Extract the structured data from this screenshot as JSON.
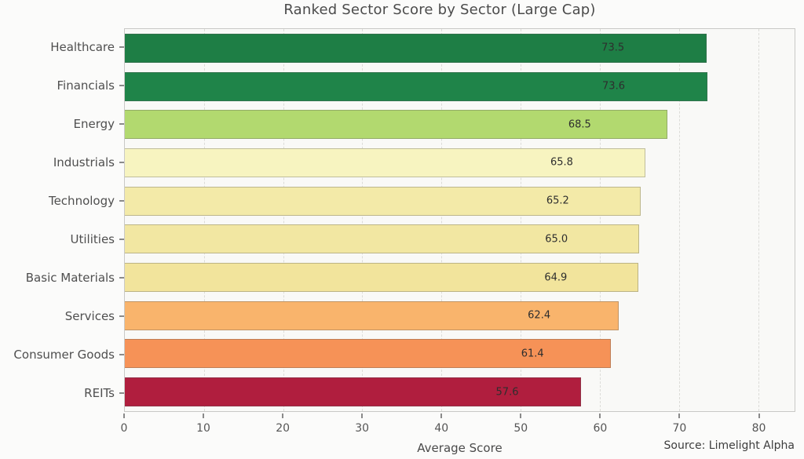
{
  "chart_data": {
    "type": "bar",
    "orientation": "horizontal",
    "title": "Ranked Sector Score by Sector (Large Cap)",
    "xlabel": "Average Score",
    "source": "Source: Limelight Alpha",
    "xlim": [
      0,
      84.6
    ],
    "xticks": [
      0,
      10,
      20,
      30,
      40,
      50,
      60,
      70,
      80
    ],
    "grid": "vertical-dashed",
    "legend": "none",
    "categories": [
      "Healthcare",
      "Financials",
      "Energy",
      "Industrials",
      "Technology",
      "Utilities",
      "Basic Materials",
      "Services",
      "Consumer Goods",
      "REITs"
    ],
    "values": [
      73.5,
      73.6,
      68.5,
      65.8,
      65.2,
      65.0,
      64.9,
      62.4,
      61.4,
      57.6
    ],
    "bar_colors": [
      "#1e7e45",
      "#1f8449",
      "#b2d96f",
      "#f7f4c0",
      "#f3eaa8",
      "#f2e7a2",
      "#f2e49c",
      "#f9b46c",
      "#f69257",
      "#b01e3e"
    ]
  },
  "colors": {
    "page_bg": "#fbfbfa",
    "plot_bg": "#f9f9f7",
    "plot_border": "#c9c9c6",
    "gridline": "#dcdcd8",
    "text": "#4a4a4a"
  }
}
